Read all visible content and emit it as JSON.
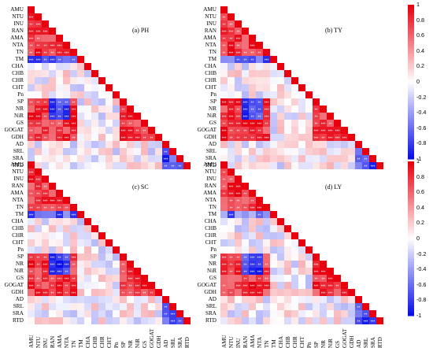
{
  "chart_data": [
    {
      "type": "heatmap",
      "title": "(a) PH",
      "variables": [
        "AMU",
        "NTU",
        "INU",
        "RAN",
        "AMA",
        "NTA",
        "TN",
        "TM",
        "CHA",
        "CHB",
        "CHR",
        "CHT",
        "Pn",
        "SP",
        "NR",
        "NiR",
        "GS",
        "GOGAT",
        "GDH",
        "AD",
        "SRL",
        "SRA",
        "RTD"
      ],
      "shape": "lower-triangle",
      "scale": [
        -1,
        1
      ],
      "colorbar_ticks": [
        "1",
        "0.8",
        "0.6",
        "0.4",
        "0.2",
        "0",
        "-0.2",
        "-0.4",
        "-0.6",
        "-0.8",
        "-1"
      ],
      "notes": "Symmetric correlation matrix; diagonal = 1. Asterisks mark significance."
    },
    {
      "type": "heatmap",
      "title": "(b) TY",
      "variables": [
        "AMU",
        "NTU",
        "INU",
        "RAN",
        "AMA",
        "NTA",
        "TN",
        "TM",
        "CHA",
        "CHB",
        "CHR",
        "CHT",
        "Pn",
        "SP",
        "NR",
        "NiR",
        "GS",
        "GOGAT",
        "GDH",
        "AD",
        "SRL",
        "SRA",
        "RTD"
      ],
      "shape": "lower-triangle",
      "scale": [
        -1,
        1
      ],
      "colorbar_ticks": [
        "1",
        "0.8",
        "0.6",
        "0.4",
        "0.2",
        "0",
        "-0.2",
        "-0.4",
        "-0.6",
        "-0.8",
        "-1"
      ]
    },
    {
      "type": "heatmap",
      "title": "(c) SC",
      "variables": [
        "AMU",
        "NTU",
        "INU",
        "RAN",
        "AMA",
        "NTA",
        "TN",
        "TM",
        "CHA",
        "CHB",
        "CHR",
        "CHT",
        "Pn",
        "SP",
        "NR",
        "NiR",
        "GS",
        "GOGAT",
        "GDH",
        "AD",
        "SRL",
        "SRA",
        "RTD"
      ],
      "shape": "lower-triangle",
      "scale": [
        -1,
        1
      ],
      "colorbar_ticks": [
        "1",
        "0.8",
        "0.6",
        "0.4",
        "0.2",
        "0",
        "-0.2",
        "-0.4",
        "-0.6",
        "-0.8",
        "-1"
      ]
    },
    {
      "type": "heatmap",
      "title": "(d) LY",
      "variables": [
        "AMU",
        "NTU",
        "INU",
        "RAN",
        "AMA",
        "NTA",
        "TN",
        "TM",
        "CHA",
        "CHB",
        "CHR",
        "CHT",
        "Pn",
        "SP",
        "NR",
        "NiR",
        "GS",
        "GOGAT",
        "GDH",
        "AD",
        "SRL",
        "SRA",
        "RTD"
      ],
      "shape": "lower-triangle",
      "scale": [
        -1,
        1
      ],
      "colorbar_ticks": [
        "1",
        "0.8",
        "0.6",
        "0.4",
        "0.2",
        "0",
        "-0.2",
        "-0.4",
        "-0.6",
        "-0.8",
        "-1"
      ]
    }
  ],
  "colors": {
    "positive": "#e8000f",
    "neutral": "#ffffff",
    "negative": "#0a0fe8",
    "star": "#ffffff"
  }
}
